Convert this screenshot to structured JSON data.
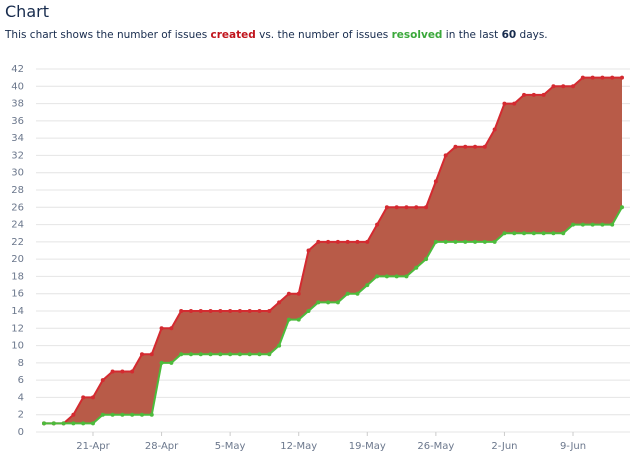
{
  "header": {
    "title": "Chart",
    "description": [
      {
        "text": "This chart shows the number of issues "
      },
      {
        "text": "created",
        "color": "#c0141c"
      },
      {
        "text": " vs. the number of issues "
      },
      {
        "text": "resolved",
        "color": "#3aa83a"
      },
      {
        "text": " in the last "
      },
      {
        "text": 60,
        "color": "#172b4d"
      },
      {
        "text": " days."
      }
    ]
  },
  "chart_data": {
    "type": "line",
    "categories": [
      null,
      null,
      null,
      null,
      null,
      "21-Apr",
      null,
      null,
      null,
      null,
      null,
      null,
      "28-Apr",
      null,
      null,
      null,
      null,
      null,
      null,
      "5-May",
      null,
      null,
      null,
      null,
      null,
      null,
      "12-May",
      null,
      null,
      null,
      null,
      null,
      null,
      "19-May",
      null,
      null,
      null,
      null,
      null,
      null,
      "26-May",
      null,
      null,
      null,
      null,
      null,
      null,
      "2-Jun",
      null,
      null,
      null,
      null,
      null,
      null,
      "9-Jun",
      null,
      null,
      null,
      null,
      null
    ],
    "series": [
      {
        "name": "created",
        "color": "#d42a30",
        "values": [
          1,
          1,
          1,
          2,
          4,
          4,
          6,
          7,
          7,
          7,
          9,
          9,
          12,
          12,
          14,
          14,
          14,
          14,
          14,
          14,
          14,
          14,
          14,
          14,
          15,
          16,
          16,
          21,
          22,
          22,
          22,
          22,
          22,
          22,
          24,
          26,
          26,
          26,
          26,
          26,
          29,
          32,
          33,
          33,
          33,
          33,
          35,
          38,
          38,
          39,
          39,
          39,
          40,
          40,
          40,
          41,
          41,
          41,
          41,
          41
        ]
      },
      {
        "name": "resolved",
        "color": "#4cbb3c",
        "values": [
          1,
          1,
          1,
          1,
          1,
          1,
          2,
          2,
          2,
          2,
          2,
          2,
          8,
          8,
          9,
          9,
          9,
          9,
          9,
          9,
          9,
          9,
          9,
          9,
          10,
          13,
          13,
          14,
          15,
          15,
          15,
          16,
          16,
          17,
          18,
          18,
          18,
          18,
          19,
          20,
          22,
          22,
          22,
          22,
          22,
          22,
          22,
          23,
          23,
          23,
          23,
          23,
          23,
          23,
          24,
          24,
          24,
          24,
          24,
          26
        ]
      }
    ],
    "fill_between": "#b85b48",
    "ylim": [
      0,
      42
    ],
    "yticks": [
      0,
      2,
      4,
      6,
      8,
      10,
      12,
      14,
      16,
      18,
      20,
      22,
      24,
      26,
      28,
      30,
      32,
      34,
      36,
      38,
      40,
      42
    ],
    "grid": true
  }
}
